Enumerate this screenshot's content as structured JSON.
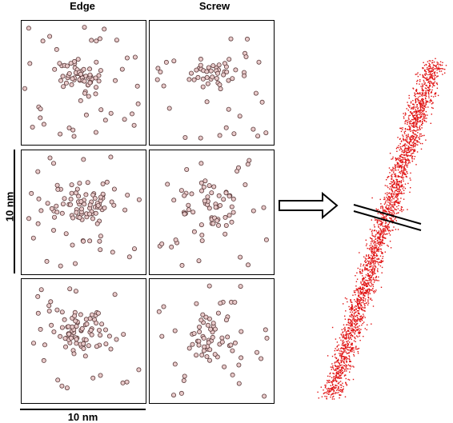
{
  "headers": {
    "edge": "Edge",
    "screw": "Screw"
  },
  "scale": {
    "vertical_label": "10 nm",
    "horizontal_label": "10 nm"
  },
  "colors": {
    "atom_fill": "#e8c9c9",
    "atom_stroke": "#5a3a3a",
    "rod_dots": "#e01010",
    "line": "#000000"
  },
  "panels": [
    {
      "id": "edge-1",
      "column": "edge",
      "row": 1
    },
    {
      "id": "screw-1",
      "column": "screw",
      "row": 1
    },
    {
      "id": "edge-2",
      "column": "edge",
      "row": 2
    },
    {
      "id": "screw-2",
      "column": "screw",
      "row": 2
    },
    {
      "id": "edge-3",
      "column": "edge",
      "row": 3
    },
    {
      "id": "screw-3",
      "column": "screw",
      "row": 3
    }
  ]
}
